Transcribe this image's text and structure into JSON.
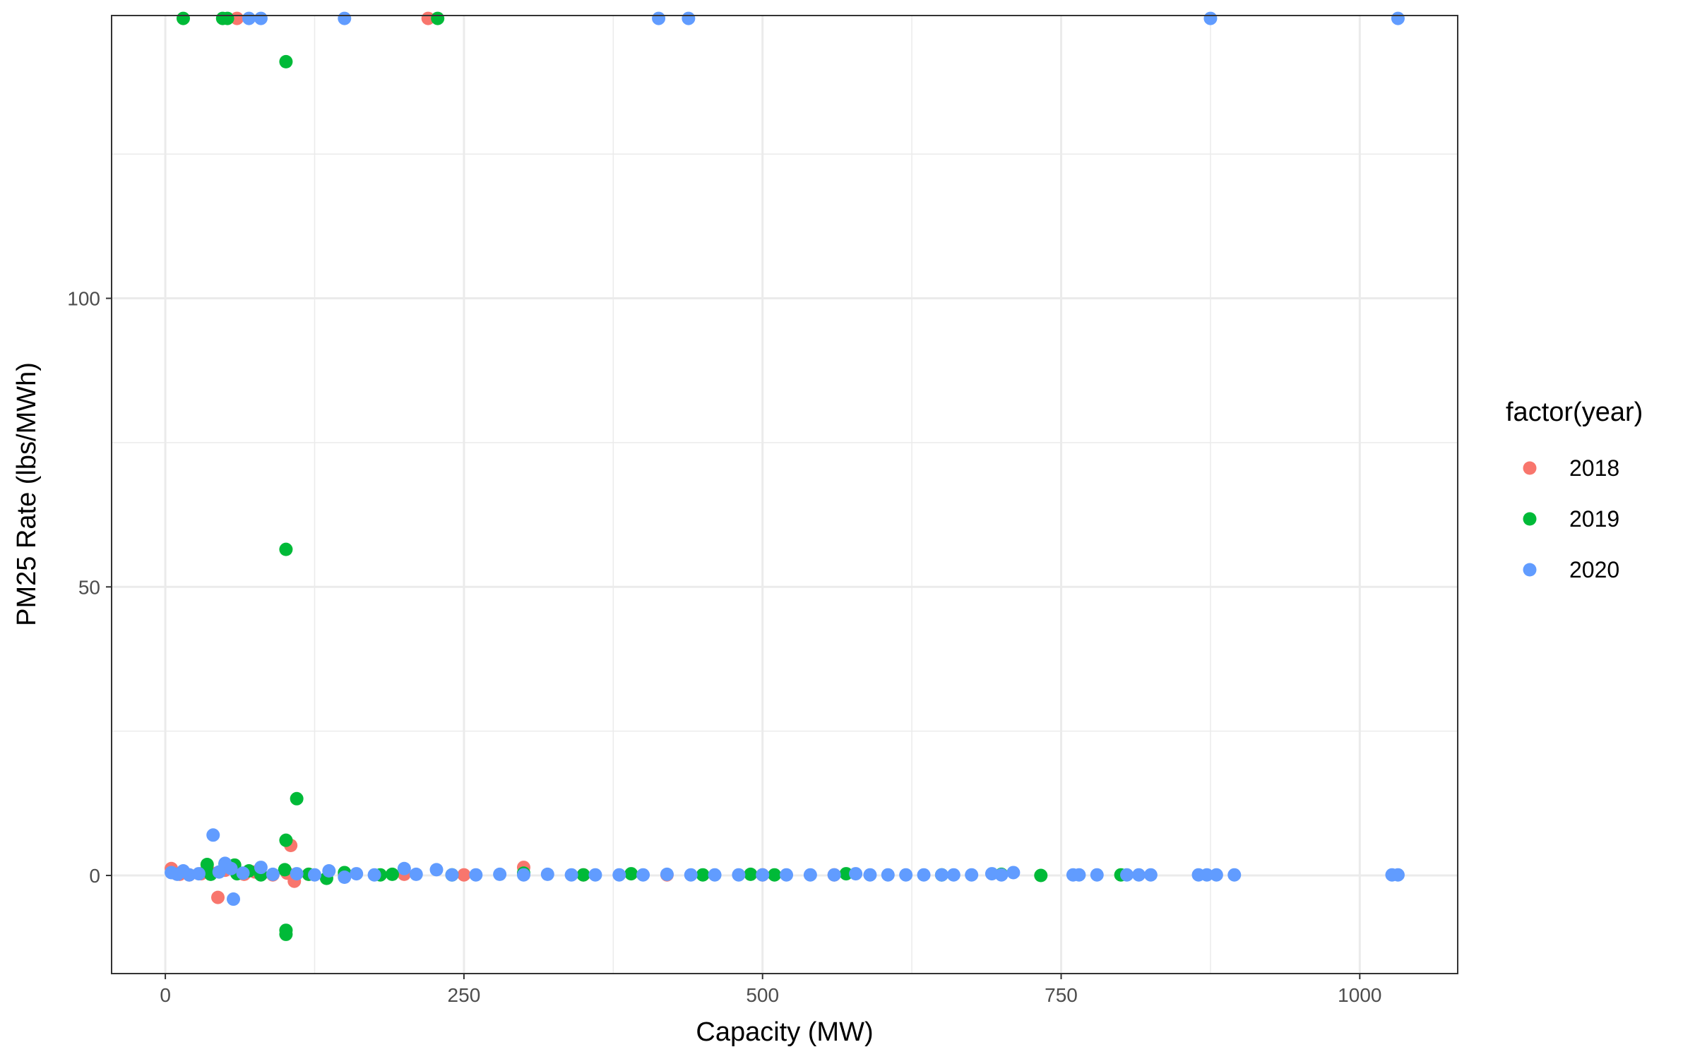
{
  "colors": {
    "2018": "#F8766D",
    "2019": "#00BA38",
    "2020": "#619CFF",
    "grid": "#EBEBEB",
    "panel_border": "#333333",
    "tick_text": "#4d4d4d"
  },
  "chart_data": {
    "type": "scatter",
    "title": "",
    "xlabel": "Capacity (MW)",
    "ylabel": "PM25 Rate (lbs/MWh)",
    "xlim": [
      -45,
      1082
    ],
    "ylim": [
      -17,
      149
    ],
    "x_ticks": [
      0,
      250,
      500,
      750,
      1000
    ],
    "x_tick_labels": [
      "0",
      "250",
      "500",
      "750",
      "1000"
    ],
    "y_ticks": [
      0,
      50,
      100
    ],
    "y_tick_labels": [
      "0",
      "50",
      "100"
    ],
    "x_minor_ticks": [
      125,
      375,
      625,
      875
    ],
    "y_minor_ticks": [
      25,
      75,
      125
    ],
    "grid": true,
    "legend": {
      "title": "factor(year)",
      "placement": "right",
      "entries": [
        "2018",
        "2019",
        "2020"
      ]
    },
    "series": [
      {
        "name": "2018",
        "points": [
          [
            5,
            1.2
          ],
          [
            8,
            0.4
          ],
          [
            12,
            0.2
          ],
          [
            20,
            0.1
          ],
          [
            30,
            0.3
          ],
          [
            38,
            0.5
          ],
          [
            44,
            -3.8
          ],
          [
            50,
            0.9
          ],
          [
            60,
            148.5
          ],
          [
            66,
            0.2
          ],
          [
            75,
            0.6
          ],
          [
            90,
            0.1
          ],
          [
            102,
            0.4
          ],
          [
            105,
            5.2
          ],
          [
            108,
            -1.0
          ],
          [
            120,
            0.2
          ],
          [
            150,
            0.1
          ],
          [
            200,
            0.2
          ],
          [
            220,
            148.5
          ],
          [
            250,
            0.1
          ],
          [
            300,
            1.4
          ],
          [
            350,
            0.1
          ],
          [
            420,
            0.1
          ],
          [
            500,
            0.1
          ],
          [
            560,
            0.1
          ]
        ]
      },
      {
        "name": "2019",
        "points": [
          [
            15,
            148.5
          ],
          [
            48,
            148.5
          ],
          [
            52,
            148.5
          ],
          [
            228,
            148.5
          ],
          [
            101,
            141
          ],
          [
            101,
            56.5
          ],
          [
            110,
            13.3
          ],
          [
            101,
            6.1
          ],
          [
            101,
            -9.5
          ],
          [
            101,
            -10.2
          ],
          [
            35,
            1.9
          ],
          [
            38,
            0.2
          ],
          [
            50,
            2.0
          ],
          [
            58,
            1.8
          ],
          [
            60,
            0.3
          ],
          [
            70,
            0.8
          ],
          [
            80,
            0.1
          ],
          [
            100,
            1.0
          ],
          [
            120,
            0.2
          ],
          [
            135,
            -0.5
          ],
          [
            150,
            0.5
          ],
          [
            180,
            0.1
          ],
          [
            190,
            0.2
          ],
          [
            240,
            0.1
          ],
          [
            300,
            0.4
          ],
          [
            350,
            0.1
          ],
          [
            390,
            0.3
          ],
          [
            450,
            0.1
          ],
          [
            490,
            0.2
          ],
          [
            510,
            0.1
          ],
          [
            570,
            0.3
          ],
          [
            650,
            0.1
          ],
          [
            700,
            0.2
          ],
          [
            733,
            0.0
          ],
          [
            800,
            0.1
          ]
        ]
      },
      {
        "name": "2020",
        "points": [
          [
            70,
            148.5
          ],
          [
            80,
            148.5
          ],
          [
            150,
            148.5
          ],
          [
            413,
            148.5
          ],
          [
            438,
            148.5
          ],
          [
            875,
            148.5
          ],
          [
            1032,
            148.5
          ],
          [
            40,
            7.0
          ],
          [
            50,
            2.1
          ],
          [
            57,
            -4.1
          ],
          [
            5,
            0.5
          ],
          [
            10,
            0.2
          ],
          [
            15,
            0.8
          ],
          [
            20,
            0.1
          ],
          [
            28,
            0.3
          ],
          [
            45,
            0.6
          ],
          [
            55,
            1.2
          ],
          [
            65,
            0.4
          ],
          [
            80,
            1.4
          ],
          [
            90,
            0.2
          ],
          [
            110,
            0.3
          ],
          [
            125,
            0.1
          ],
          [
            137,
            0.8
          ],
          [
            150,
            -0.3
          ],
          [
            160,
            0.3
          ],
          [
            175,
            0.1
          ],
          [
            200,
            1.2
          ],
          [
            210,
            0.2
          ],
          [
            227,
            1.0
          ],
          [
            240,
            0.1
          ],
          [
            260,
            0.1
          ],
          [
            280,
            0.2
          ],
          [
            300,
            0.1
          ],
          [
            320,
            0.2
          ],
          [
            340,
            0.1
          ],
          [
            360,
            0.1
          ],
          [
            380,
            0.1
          ],
          [
            400,
            0.1
          ],
          [
            420,
            0.2
          ],
          [
            440,
            0.1
          ],
          [
            460,
            0.1
          ],
          [
            480,
            0.1
          ],
          [
            500,
            0.1
          ],
          [
            520,
            0.1
          ],
          [
            540,
            0.1
          ],
          [
            560,
            0.1
          ],
          [
            578,
            0.3
          ],
          [
            590,
            0.1
          ],
          [
            605,
            0.1
          ],
          [
            620,
            0.1
          ],
          [
            635,
            0.1
          ],
          [
            650,
            0.1
          ],
          [
            660,
            0.1
          ],
          [
            675,
            0.1
          ],
          [
            692,
            0.3
          ],
          [
            700,
            0.1
          ],
          [
            710,
            0.5
          ],
          [
            760,
            0.1
          ],
          [
            765,
            0.1
          ],
          [
            780,
            0.1
          ],
          [
            805,
            0.1
          ],
          [
            815,
            0.1
          ],
          [
            825,
            0.1
          ],
          [
            865,
            0.1
          ],
          [
            872,
            0.1
          ],
          [
            880,
            0.1
          ],
          [
            895,
            0.1
          ],
          [
            1027,
            0.1
          ],
          [
            1032,
            0.1
          ]
        ]
      }
    ]
  }
}
